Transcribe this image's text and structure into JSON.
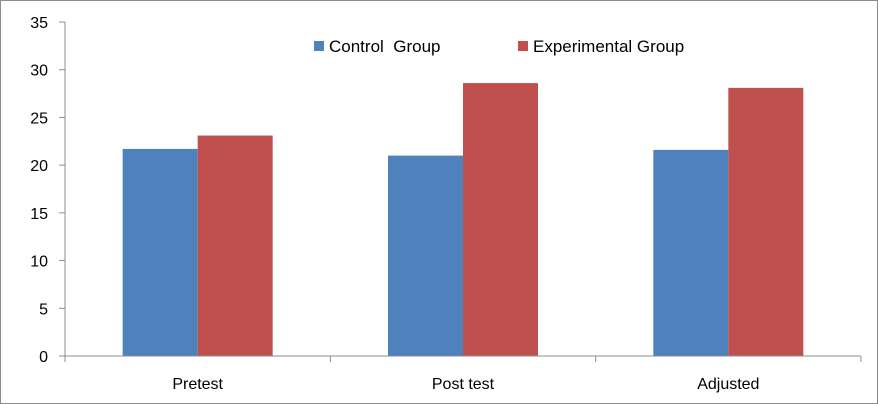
{
  "chart_data": {
    "type": "bar",
    "categories": [
      "Pretest",
      "Post test",
      "Adjusted"
    ],
    "series": [
      {
        "name": "Control  Group",
        "color": "#4f81bd",
        "values": [
          21.7,
          21.0,
          21.6
        ]
      },
      {
        "name": "Experimental Group",
        "color": "#c0504d",
        "values": [
          23.1,
          28.6,
          28.1
        ]
      }
    ],
    "ylim": [
      0,
      35
    ],
    "yticks": [
      0,
      5,
      10,
      15,
      20,
      25,
      30,
      35
    ],
    "grid": false,
    "legend_position": "top"
  }
}
